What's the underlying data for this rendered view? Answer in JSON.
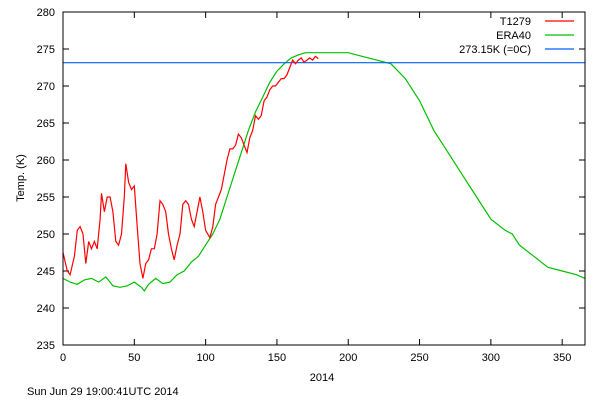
{
  "chart_data": {
    "type": "line",
    "title": "",
    "xlabel": "2014",
    "ylabel": "Temp. (K)",
    "xlim": [
      0,
      366
    ],
    "ylim": [
      235,
      280
    ],
    "xticks": [
      0,
      50,
      100,
      150,
      200,
      250,
      300,
      350
    ],
    "yticks": [
      235,
      240,
      245,
      250,
      255,
      260,
      265,
      270,
      275,
      280
    ],
    "grid": false,
    "legend_position": "top-right",
    "timestamp": "Sun Jun 29 19:00:41UTC 2014",
    "series": [
      {
        "name": "T1279",
        "color": "#ff0000",
        "x": [
          0,
          3,
          5,
          8,
          10,
          12,
          14,
          16,
          18,
          20,
          22,
          24,
          26,
          27,
          29,
          31,
          33,
          35,
          37,
          39,
          41,
          43,
          44,
          46,
          48,
          50,
          52,
          54,
          56,
          58,
          60,
          62,
          64,
          66,
          68,
          70,
          72,
          74,
          76,
          78,
          80,
          82,
          84,
          86,
          88,
          90,
          92,
          94,
          96,
          98,
          100,
          103,
          105,
          107,
          109,
          111,
          113,
          115,
          117,
          119,
          121,
          123,
          125,
          127,
          129,
          131,
          133,
          135,
          137,
          139,
          141,
          143,
          145,
          147,
          149,
          151,
          153,
          155,
          157,
          159,
          161,
          163,
          165,
          167,
          169,
          171,
          173,
          175,
          177,
          179
        ],
        "y": [
          247.5,
          245,
          244.5,
          247,
          250.5,
          251,
          250,
          246,
          249,
          248,
          249,
          248,
          252,
          255.5,
          253,
          255,
          255,
          253,
          249,
          248.5,
          250,
          255,
          259.5,
          257,
          256,
          256.5,
          251,
          246,
          244,
          246,
          246.5,
          248,
          248,
          250,
          254.5,
          254,
          253,
          250,
          248,
          246.5,
          248.5,
          250,
          254,
          254.5,
          254,
          252,
          251,
          253,
          255,
          253,
          250.5,
          249.5,
          251,
          254,
          255,
          256,
          258,
          260,
          261.5,
          261.5,
          262,
          263.5,
          263,
          262,
          261,
          263,
          264,
          266,
          265.5,
          266,
          268,
          268.5,
          269.5,
          270,
          270,
          270.5,
          271,
          271,
          271.5,
          272.5,
          273.5,
          273,
          273.5,
          273.8,
          273.2,
          273.5,
          273.8,
          273.5,
          274,
          273.7
        ]
      },
      {
        "name": "ERA40",
        "color": "#00c000",
        "x": [
          0,
          5,
          10,
          15,
          20,
          25,
          30,
          35,
          40,
          45,
          50,
          55,
          57,
          60,
          65,
          70,
          75,
          80,
          85,
          90,
          95,
          100,
          105,
          110,
          115,
          120,
          125,
          130,
          135,
          140,
          145,
          150,
          155,
          160,
          165,
          170,
          175,
          180,
          190,
          200,
          210,
          220,
          230,
          240,
          250,
          260,
          270,
          280,
          290,
          300,
          310,
          315,
          320,
          330,
          340,
          350,
          360,
          366
        ],
        "y": [
          244,
          243.5,
          243.2,
          243.8,
          244,
          243.5,
          244.2,
          243,
          242.8,
          243,
          243.5,
          242.8,
          242.3,
          243.2,
          244,
          243.3,
          243.5,
          244.5,
          245,
          246.2,
          247,
          248.5,
          250,
          252,
          255,
          258,
          261,
          264,
          266.5,
          268.5,
          270.5,
          272,
          273,
          273.8,
          274.2,
          274.5,
          274.5,
          274.5,
          274.5,
          274.5,
          274,
          273.5,
          273,
          271,
          268,
          264,
          261,
          258,
          255,
          252,
          250.5,
          250,
          248.5,
          247,
          245.5,
          245,
          244.5,
          244
        ]
      },
      {
        "name": "273.15K (=0C)",
        "color": "#0060ff",
        "x": [
          0,
          366
        ],
        "y": [
          273.15,
          273.15
        ]
      }
    ]
  }
}
